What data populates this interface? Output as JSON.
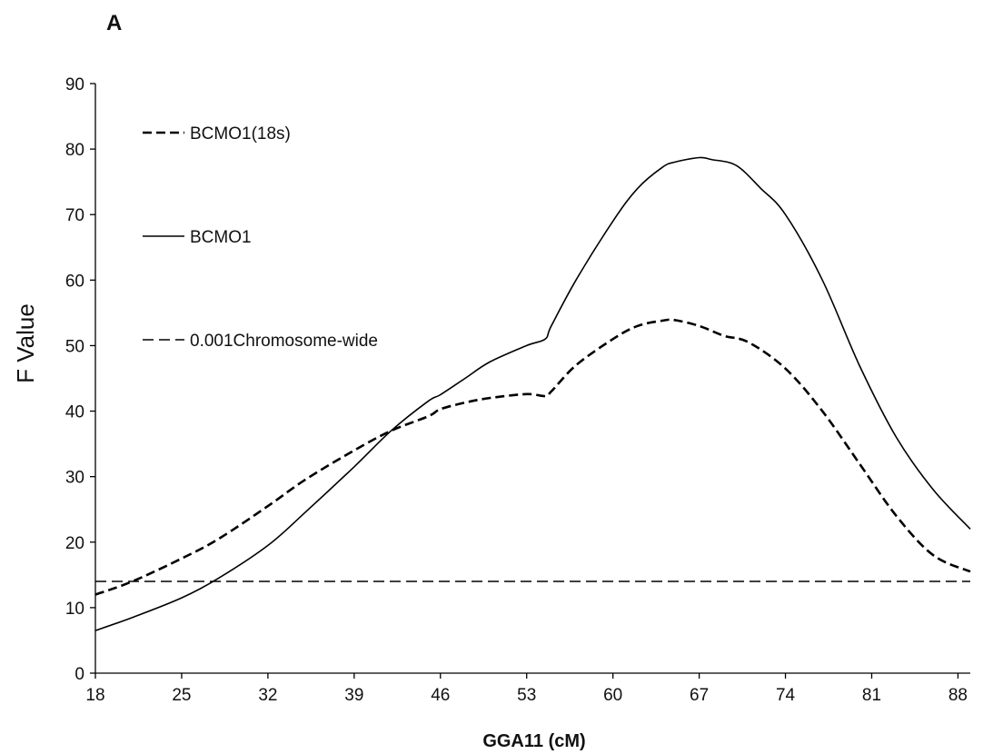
{
  "chart_data": {
    "type": "line",
    "panel_label": "A",
    "title": "",
    "xlabel": "GGA11 (cM)",
    "ylabel": "F Value",
    "xlim": [
      18,
      89
    ],
    "ylim": [
      0,
      90
    ],
    "x_ticks": [
      18,
      25,
      32,
      39,
      46,
      53,
      60,
      67,
      74,
      81,
      88
    ],
    "y_ticks": [
      0,
      10,
      20,
      30,
      40,
      50,
      60,
      70,
      80,
      90
    ],
    "grid": false,
    "legend_position": "top-left",
    "series": [
      {
        "name": "BCMO1(18s)",
        "style": "dashed",
        "color": "#000000",
        "x": [
          18,
          21,
          25,
          28,
          32,
          35,
          39,
          42,
          45,
          46,
          48,
          50,
          53,
          54.5,
          55,
          57,
          60,
          62,
          64,
          65,
          67,
          69,
          71,
          74,
          77,
          80,
          83,
          86,
          89
        ],
        "y": [
          12,
          14,
          17.5,
          20.5,
          25.5,
          29.5,
          34,
          37,
          39.2,
          40.3,
          41.3,
          42,
          42.6,
          42.3,
          43,
          47,
          51,
          53,
          53.8,
          53.9,
          53,
          51.5,
          50.5,
          46.5,
          40,
          32,
          24,
          18,
          15.5
        ]
      },
      {
        "name": "BCMO1",
        "style": "solid",
        "color": "#000000",
        "x": [
          18,
          21,
          25,
          28,
          32,
          35,
          39,
          42,
          45,
          46,
          48,
          50,
          53,
          54.5,
          55,
          57,
          60,
          62,
          64,
          65,
          67,
          68,
          70,
          72,
          74,
          77,
          80,
          83,
          86,
          89
        ],
        "y": [
          6.5,
          8.5,
          11.5,
          14.5,
          19.5,
          24.5,
          31.5,
          37,
          41.5,
          42.5,
          45,
          47.5,
          50,
          51,
          53,
          60,
          69,
          74,
          77.2,
          78,
          78.7,
          78.4,
          77.5,
          74,
          70,
          60,
          47,
          36,
          28,
          22
        ]
      },
      {
        "name": "0.001Chromosome-wide",
        "style": "dashed",
        "color": "#000000",
        "x": [
          18,
          89
        ],
        "y": [
          14,
          14
        ]
      }
    ]
  }
}
